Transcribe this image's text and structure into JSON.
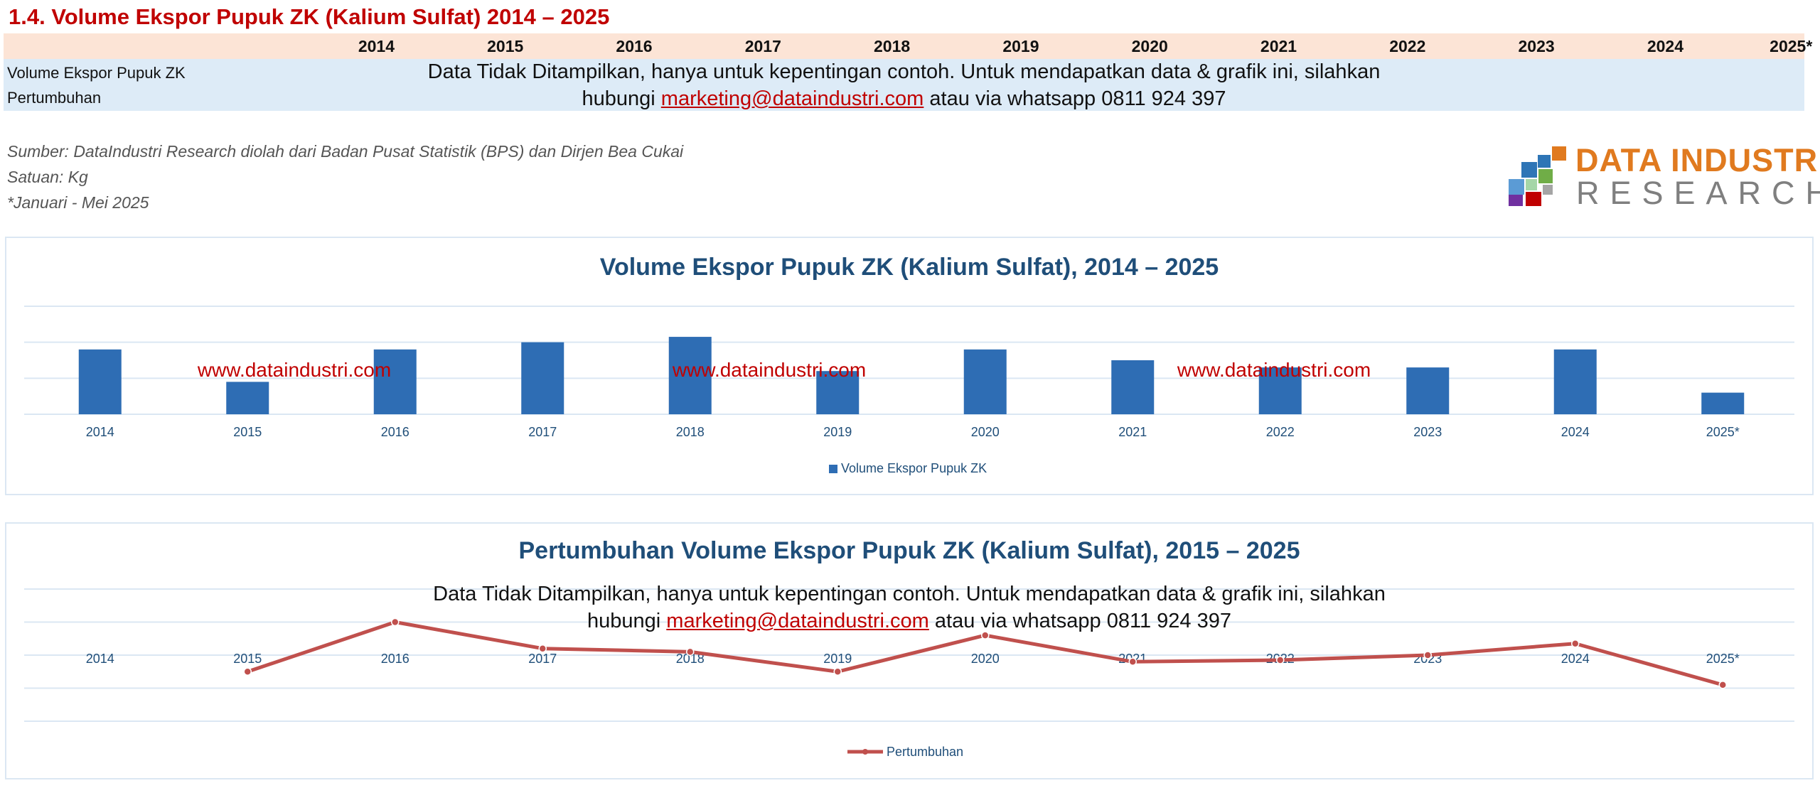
{
  "page": {
    "title": "1.4. Volume Ekspor Pupuk ZK (Kalium Sulfat) 2014 – 2025"
  },
  "table": {
    "years": [
      "2014",
      "2015",
      "2016",
      "2017",
      "2018",
      "2019",
      "2020",
      "2021",
      "2022",
      "2023",
      "2024",
      "2025*"
    ],
    "rows": [
      "Volume Ekspor Pupuk ZK",
      "Pertumbuhan"
    ]
  },
  "notice": {
    "line1": "Data Tidak Ditampilkan, hanya untuk kepentingan contoh. Untuk mendapatkan data & grafik  ini, silahkan",
    "line2_prefix": "hubungi ",
    "email": "marketing@dataindustri.com",
    "line2_suffix": " atau via whatsapp 0811 924 397"
  },
  "source": {
    "line1": "Sumber: DataIndustri Research diolah dari Badan Pusat Statistik (BPS) dan Dirjen Bea Cukai",
    "line2": "Satuan: Kg",
    "line3": "*Januari - Mei 2025"
  },
  "logo": {
    "title": "DATA INDUSTRI",
    "subtitle": "RESEARCH",
    "colors": [
      "#e07a1f",
      "#2e75b6",
      "#70ad47",
      "#7030a0",
      "#c00000",
      "#a5a5a5"
    ]
  },
  "watermark": "www.dataindustri.com",
  "colors": {
    "bar": "#2e6db4",
    "line": "#c0504d",
    "title": "#1f4e79",
    "accent": "#c00000"
  },
  "chart_data": [
    {
      "type": "bar",
      "title": "Volume Ekspor Pupuk ZK (Kalium Sulfat), 2014 – 2025",
      "categories": [
        "2014",
        "2015",
        "2016",
        "2017",
        "2018",
        "2019",
        "2020",
        "2021",
        "2022",
        "2023",
        "2024",
        "2025*"
      ],
      "series": [
        {
          "name": "Volume Ekspor Pupuk ZK",
          "values": [
            1.8,
            0.9,
            1.8,
            2.0,
            2.15,
            1.2,
            1.8,
            1.5,
            1.3,
            1.3,
            1.8,
            0.6
          ]
        }
      ],
      "ylim": [
        0,
        3
      ],
      "grid": true,
      "legend": "bottom"
    },
    {
      "type": "line",
      "title": "Pertumbuhan Volume Ekspor Pupuk ZK (Kalium Sulfat), 2015 – 2025",
      "categories": [
        "2014",
        "2015",
        "2016",
        "2017",
        "2018",
        "2019",
        "2020",
        "2021",
        "2022",
        "2023",
        "2024",
        "2025*"
      ],
      "series": [
        {
          "name": "Pertumbuhan",
          "values": [
            null,
            -0.5,
            1.0,
            0.2,
            0.1,
            -0.5,
            0.6,
            -0.2,
            -0.15,
            0.0,
            0.35,
            -0.9
          ]
        }
      ],
      "ylim": [
        -2,
        2
      ],
      "grid": true,
      "legend": "bottom"
    }
  ]
}
